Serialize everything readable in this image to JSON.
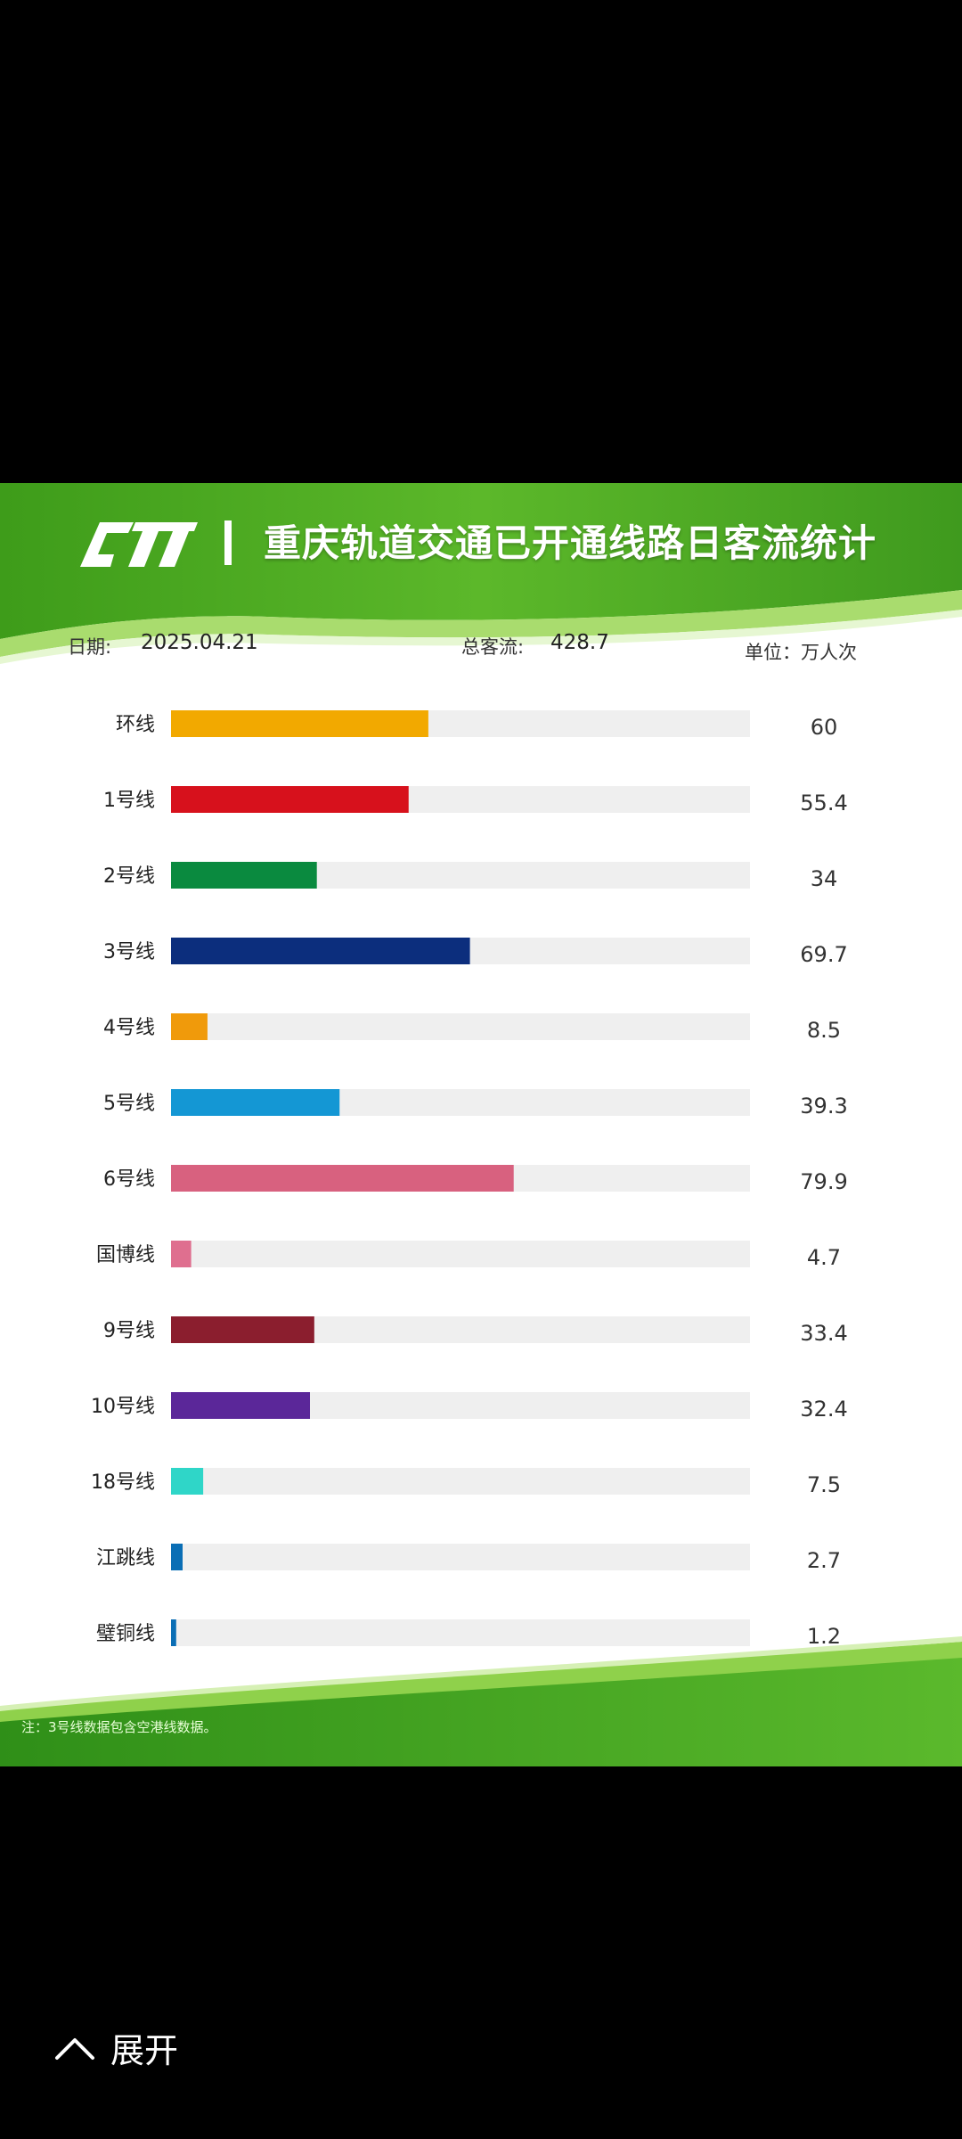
{
  "card": {
    "title": "重庆轨道交通已开通线路日客流统计",
    "date_label": "日期:",
    "date": "2025.04.21",
    "total_label": "总客流:",
    "total": "428.7",
    "unit_label": "单位：万人次",
    "note": "注：3号线数据包含空港线数据。"
  },
  "chart_data": {
    "type": "bar",
    "orientation": "horizontal",
    "title": "重庆轨道交通已开通线路日客流统计",
    "unit": "万人次",
    "xlim": [
      0,
      135
    ],
    "categories": [
      "环线",
      "1号线",
      "2号线",
      "3号线",
      "4号线",
      "5号线",
      "6号线",
      "国博线",
      "9号线",
      "10号线",
      "18号线",
      "江跳线",
      "璧铜线"
    ],
    "values": [
      60,
      55.4,
      34,
      69.7,
      8.5,
      39.3,
      79.9,
      4.7,
      33.4,
      32.4,
      7.5,
      2.7,
      1.2
    ],
    "value_labels": [
      "60",
      "55.4",
      "34",
      "69.7",
      "8.5",
      "39.3",
      "79.9",
      "4.7",
      "33.4",
      "32.4",
      "7.5",
      "2.7",
      "1.2"
    ],
    "colors": [
      "#f2a900",
      "#d7111c",
      "#0a8a3f",
      "#0c2e7d",
      "#f09a0b",
      "#1497d4",
      "#d8617f",
      "#df6f8f",
      "#8b1e2e",
      "#5b2799",
      "#2fd6c8",
      "#0a6eb5",
      "#0a6eb5"
    ],
    "track_color": "#efefef"
  },
  "footer": {
    "expand_label": "展开"
  }
}
